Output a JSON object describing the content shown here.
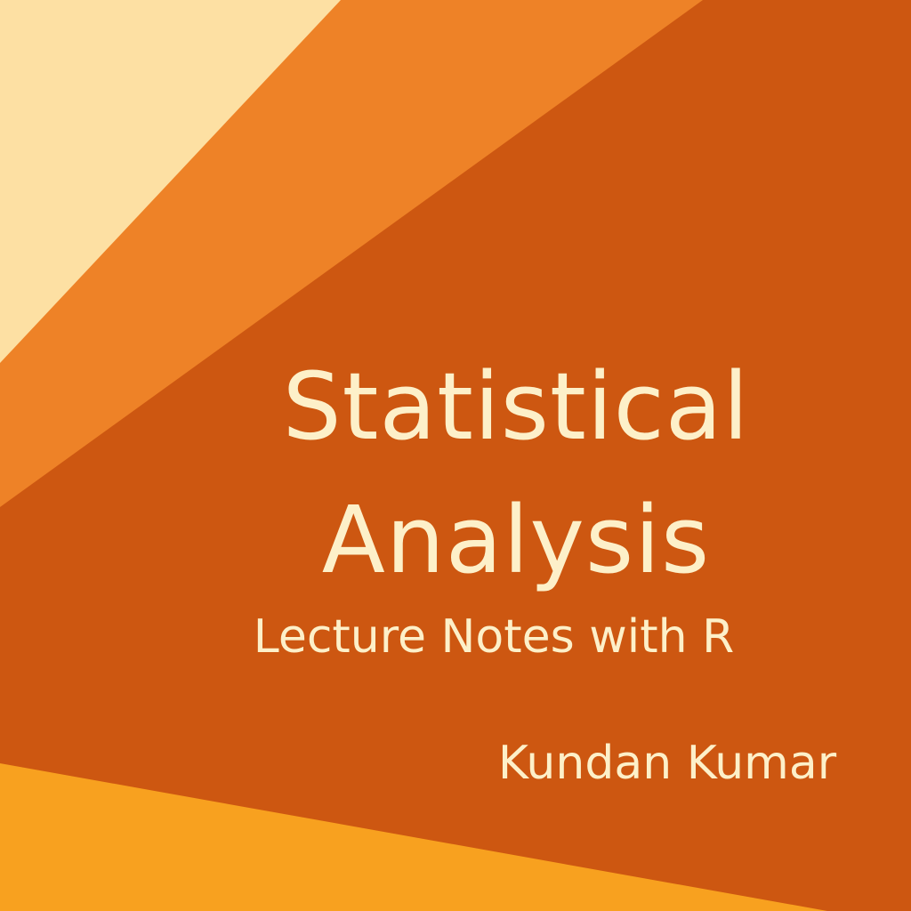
{
  "cover": {
    "title_line_1": "Statistical",
    "title_line_2": "Analysis",
    "subtitle": "Lecture Notes with R",
    "author": "Kundan Kumar"
  },
  "colors": {
    "main_background": "#cd5711",
    "light_band": "#fde0a3",
    "medium_band": "#ee8227",
    "bottom_band": "#f8a11f",
    "text": "#fdf0c9"
  }
}
